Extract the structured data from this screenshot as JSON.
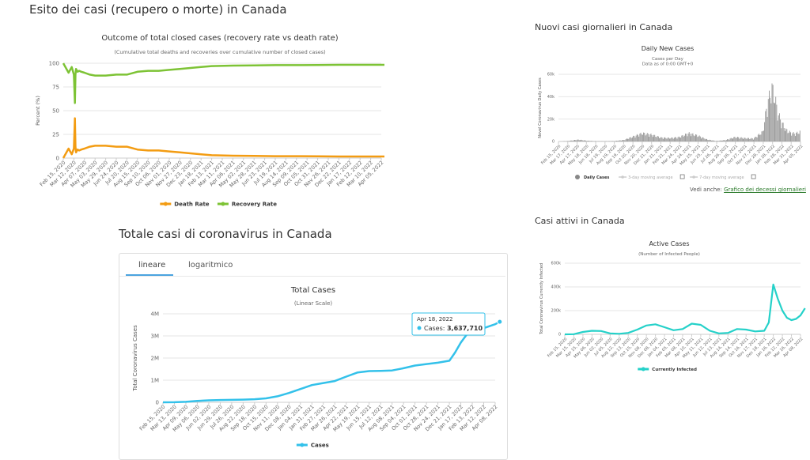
{
  "sections": {
    "outcome_title": "Esito dei casi (recupero o morte) in Canada",
    "total_title": "Totale casi di coronavirus in Canada",
    "daily_title": "Nuovi casi giornalieri in Canada",
    "active_title": "Casi attivi in Canada"
  },
  "tabs": {
    "linear": "lineare",
    "log": "logaritmico"
  },
  "see_also": {
    "prefix": "Vedi anche:",
    "link": "Grafico dei decessi giornalieri"
  },
  "colors": {
    "death": "#f39c12",
    "recovery": "#7dc335",
    "cases": "#33c1ea",
    "active": "#25d1c9",
    "daily": "#999999",
    "tab_accent": "#4aa3df"
  },
  "chart_data": [
    {
      "id": "outcome",
      "type": "line",
      "title": "Outcome of total closed cases (recovery rate vs death rate)",
      "subtitle": "(Cumulative total deaths and recoveries over cumulative number of closed cases)",
      "ylabel": "Percent (%)",
      "xlabel": "",
      "ylim": [
        0,
        100
      ],
      "yticks": [
        0,
        25,
        50,
        75,
        100
      ],
      "categories": [
        "Feb 15, 2020",
        "Mar 12, 2020",
        "Apr 07, 2020",
        "May 03, 2020",
        "May 29, 2020",
        "Jun 24, 2020",
        "Jul 20, 2020",
        "Aug 15, 2020",
        "Sep 10, 2020",
        "Oct 06, 2020",
        "Nov 01, 2020",
        "Nov 27, 2020",
        "Dec 23, 2020",
        "Jan 18, 2021",
        "Feb 13, 2021",
        "Mar 11, 2021",
        "Apr 06, 2021",
        "May 02, 2021",
        "May 28, 2021",
        "Jun 23, 2021",
        "Jul 19, 2021",
        "Aug 14, 2021",
        "Sep 09, 2021",
        "Oct 05, 2021",
        "Oct 31, 2021",
        "Nov 26, 2021",
        "Dec 22, 2021",
        "Jan 17, 2022",
        "Feb 12, 2022",
        "Mar 10, 2022",
        "Apr 05, 2022"
      ],
      "legend_position": "bottom",
      "series": [
        {
          "name": "Death Rate",
          "color": "#f39c12",
          "x": [
            0,
            0.5,
            0.8,
            1.0,
            1.1,
            1.15,
            1.2,
            1.35,
            1.5,
            1.7,
            2,
            2.5,
            3,
            4,
            5,
            6,
            7,
            8,
            9,
            10,
            11,
            12,
            13,
            14,
            16,
            18,
            20,
            22,
            24,
            26,
            28,
            30.3
          ],
          "y": [
            0,
            10,
            4,
            10,
            42,
            12,
            6,
            9,
            8,
            9,
            10,
            12,
            13,
            13,
            12,
            12,
            9,
            8,
            8,
            7,
            6,
            5,
            4,
            3,
            2.5,
            2.3,
            2,
            2,
            1.8,
            1.7,
            1.7,
            1.7
          ]
        },
        {
          "name": "Recovery Rate",
          "color": "#7dc335",
          "x": [
            0,
            0.5,
            0.8,
            1.0,
            1.1,
            1.15,
            1.2,
            1.35,
            1.5,
            1.7,
            2,
            2.5,
            3,
            4,
            5,
            6,
            7,
            8,
            9,
            10,
            11,
            12,
            13,
            14,
            16,
            18,
            20,
            22,
            24,
            26,
            28,
            30.3
          ],
          "y": [
            100,
            90,
            96,
            88,
            58,
            88,
            94,
            91,
            92,
            91,
            90,
            88,
            87,
            87,
            88,
            88,
            91,
            92,
            92,
            93,
            94,
            95,
            96,
            97,
            97.5,
            97.7,
            98,
            98,
            98.2,
            98.3,
            98.3,
            98.3
          ]
        }
      ]
    },
    {
      "id": "total",
      "type": "line",
      "title": "Total Cases",
      "subtitle": "(Linear Scale)",
      "ylabel": "Total Coronavirus Cases",
      "xlabel": "",
      "ylim": [
        0,
        4000000
      ],
      "yticks": [
        0,
        1000000,
        2000000,
        3000000,
        4000000
      ],
      "ytick_labels": [
        "0",
        "1M",
        "2M",
        "3M",
        "4M"
      ],
      "categories": [
        "Feb 15, 2020",
        "Mar 13, 2020",
        "Apr 09, 2020",
        "May 06, 2020",
        "Jun 02, 2020",
        "Jun 29, 2020",
        "Jul 26, 2020",
        "Aug 22, 2020",
        "Sep 18, 2020",
        "Oct 15, 2020",
        "Nov 11, 2020",
        "Dec 08, 2020",
        "Jan 04, 2021",
        "Jan 31, 2021",
        "Feb 27, 2021",
        "Mar 26, 2021",
        "Apr 22, 2021",
        "May 19, 2021",
        "Jun 15, 2021",
        "Jul 12, 2021",
        "Aug 08, 2021",
        "Sep 04, 2021",
        "Oct 01, 2021",
        "Oct 28, 2021",
        "Nov 24, 2021",
        "Dec 21, 2021",
        "Jan 17, 2022",
        "Feb 13, 2022",
        "Mar 12, 2022",
        "Apr 08, 2022"
      ],
      "legend_position": "bottom",
      "tooltip": {
        "date": "Apr 18, 2022",
        "label": "Cases",
        "value": "3,637,710"
      },
      "series": [
        {
          "name": "Cases",
          "color": "#33c1ea",
          "x": [
            0,
            1,
            2,
            3,
            4,
            5,
            6,
            7,
            8,
            9,
            10,
            11,
            12,
            13,
            14,
            15,
            16,
            17,
            18,
            19,
            20,
            21,
            22,
            23,
            24,
            25,
            25.5,
            26,
            26.5,
            27,
            28,
            29,
            29.4
          ],
          "y": [
            0,
            5000,
            20000,
            60000,
            90000,
            104000,
            112000,
            123000,
            140000,
            180000,
            270000,
            420000,
            600000,
            780000,
            870000,
            960000,
            1160000,
            1350000,
            1410000,
            1420000,
            1440000,
            1540000,
            1660000,
            1730000,
            1790000,
            1880000,
            2250000,
            2700000,
            3050000,
            3200000,
            3350000,
            3530000,
            3637710
          ]
        }
      ]
    },
    {
      "id": "daily",
      "type": "bar",
      "title": "Daily New Cases",
      "subtitle": "Cases per Day",
      "subtitle2": "Data as of 0:00 GMT+0",
      "ylabel": "Novel Coronavirus Daily Cases",
      "xlabel": "",
      "ylim": [
        0,
        60000
      ],
      "yticks": [
        0,
        20000,
        40000,
        60000
      ],
      "ytick_labels": [
        "0",
        "20k",
        "40k",
        "60k"
      ],
      "categories": [
        "Feb 15, 2020",
        "Mar 17, 2020",
        "Apr 17, 2020",
        "May 18, 2020",
        "Jun 18, 2020",
        "Jul 19, 2020",
        "Aug 19, 2020",
        "Sep 19, 2020",
        "Oct 20, 2020",
        "Nov 20, 2020",
        "Dec 21, 2020",
        "Jan 21, 2021",
        "Feb 21, 2021",
        "Mar 24, 2021",
        "Apr 24, 2021",
        "May 25, 2021",
        "Jun 25, 2021",
        "Jul 26, 2021",
        "Aug 26, 2021",
        "Sep 26, 2021",
        "Oct 27, 2021",
        "Nov 27, 2021",
        "Dec 28, 2021",
        "Jan 28, 2022",
        "Feb 28, 2022",
        "Mar 31, 2022",
        "Apr 05, 2022"
      ],
      "legend": [
        "Daily Cases",
        "3-day moving average",
        "7-day moving average"
      ],
      "legend_position": "bottom",
      "profile_x": [
        0,
        1,
        2,
        2.5,
        3,
        4,
        5,
        6,
        7,
        8,
        9,
        10,
        11,
        12,
        13,
        14,
        15,
        16,
        17,
        18,
        19,
        20,
        21,
        22,
        22.5,
        23,
        23.3,
        23.6,
        24,
        24.5,
        25,
        25.5,
        26,
        26.5,
        27
      ],
      "profile_y": [
        0,
        500,
        1800,
        1500,
        800,
        400,
        350,
        500,
        1500,
        5000,
        8500,
        7000,
        4000,
        3500,
        4500,
        8500,
        6000,
        2000,
        500,
        1500,
        4500,
        3500,
        3000,
        10000,
        40000,
        55000,
        45000,
        30000,
        20000,
        12000,
        9000,
        8000,
        10000,
        13000,
        18000
      ]
    },
    {
      "id": "active",
      "type": "line",
      "title": "Active Cases",
      "subtitle": "(Number of Infected People)",
      "ylabel": "Total Coronavirus Currently Infected",
      "xlabel": "",
      "ylim": [
        0,
        600000
      ],
      "yticks": [
        0,
        200000,
        400000,
        600000
      ],
      "ytick_labels": [
        "0",
        "200k",
        "400k",
        "600k"
      ],
      "categories": [
        "Feb 15, 2020",
        "Mar 15, 2020",
        "Apr 15, 2020",
        "May 06, 2020",
        "Jun 02, 2020",
        "Jul 05, 2020",
        "Aug 12, 2020",
        "Sep 13, 2020",
        "Oct 15, 2020",
        "Nov 08, 2020",
        "Dec 08, 2020",
        "Jan 04, 2021",
        "Feb 05, 2021",
        "Mar 08, 2021",
        "Apr 10, 2021",
        "May 11, 2021",
        "Jun 12, 2021",
        "Jul 13, 2021",
        "Aug 14, 2021",
        "Sep 14, 2021",
        "Oct 16, 2021",
        "Nov 17, 2021",
        "Dec 18, 2021",
        "Jan 16, 2022",
        "Feb 12, 2022",
        "Mar 16, 2022",
        "Apr 08, 2022"
      ],
      "legend_position": "bottom",
      "series": [
        {
          "name": "Currently Infected",
          "color": "#25d1c9",
          "x": [
            0,
            1,
            2,
            3,
            4,
            5,
            6,
            7,
            8,
            9,
            10,
            11,
            12,
            13,
            14,
            15,
            16,
            17,
            18,
            19,
            20,
            21,
            22,
            22.5,
            23,
            23.5,
            24,
            24.5,
            25,
            25.5,
            26,
            26.5
          ],
          "y": [
            0,
            1000,
            20000,
            30000,
            28000,
            8000,
            5000,
            12000,
            40000,
            75000,
            85000,
            60000,
            35000,
            45000,
            90000,
            80000,
            30000,
            8000,
            12000,
            45000,
            40000,
            25000,
            30000,
            100000,
            420000,
            300000,
            200000,
            140000,
            120000,
            130000,
            160000,
            220000
          ]
        }
      ]
    }
  ]
}
